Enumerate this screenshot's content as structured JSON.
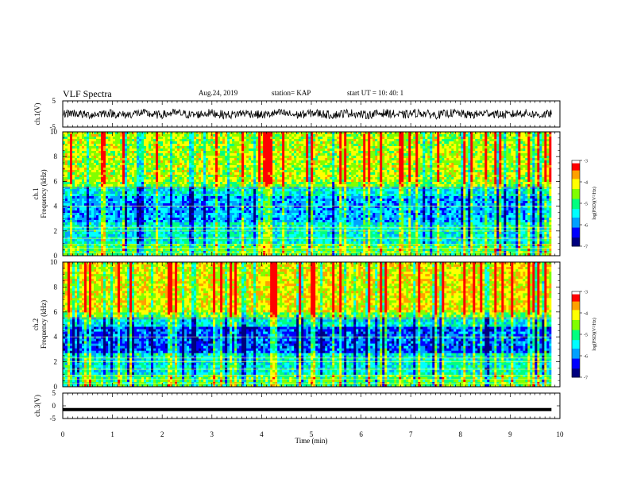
{
  "header": {
    "title": "VLF Spectra",
    "date": "Aug.24, 2019",
    "station": "station= KAP",
    "start_ut": "start  UT  =    10: 40: 1"
  },
  "chart_data": [
    {
      "type": "line",
      "name": "ch1-waveform",
      "ylabel": "ch.1(V)",
      "ylim": [
        -5,
        5
      ],
      "ticks_y": [
        "5",
        "-5"
      ],
      "x_range_min": [
        0,
        9.83
      ],
      "description_free": true
    },
    {
      "type": "heatmap",
      "name": "ch1-spectrogram",
      "ylabel_line1": "ch.1",
      "ylabel_line2": "Frequency (kHz)",
      "ylim": [
        0,
        10
      ],
      "ticks_y": [
        "0",
        "2",
        "4",
        "6",
        "8",
        "10"
      ],
      "colorbar": {
        "label": "log(PSD)(V²/Hz)",
        "range": [
          -7,
          -3
        ],
        "ticks": [
          "-3",
          "-4",
          "-5",
          "-6",
          "-7"
        ]
      }
    },
    {
      "type": "heatmap",
      "name": "ch2-spectrogram",
      "ylabel_line1": "ch.2",
      "ylabel_line2": "Frequency (kHz)",
      "ylim": [
        0,
        10
      ],
      "ticks_y": [
        "0",
        "2",
        "4",
        "6",
        "8",
        "10"
      ],
      "colorbar": {
        "label": "log(PSD)(V²/Hz)",
        "range": [
          -7,
          -3
        ],
        "ticks": [
          "-3",
          "-4",
          "-5",
          "-6",
          "-7"
        ]
      }
    },
    {
      "type": "line",
      "name": "ch3-waveform",
      "ylabel": "ch.3(V)",
      "ylim": [
        -5,
        5
      ],
      "ticks_y": [
        "5",
        "0",
        "-5"
      ],
      "value_constant": -1.5
    }
  ],
  "xaxis": {
    "label": "Time  (min)",
    "range": [
      0,
      10
    ],
    "ticks": [
      "0",
      "1",
      "2",
      "3",
      "4",
      "5",
      "6",
      "7",
      "8",
      "9",
      "10"
    ]
  },
  "colors": {
    "colormap": [
      "#00007f",
      "#0000ff",
      "#00a0ff",
      "#00ffff",
      "#00ff80",
      "#80ff00",
      "#ffff00",
      "#ffa000",
      "#ff0000",
      "#ffffff"
    ]
  }
}
